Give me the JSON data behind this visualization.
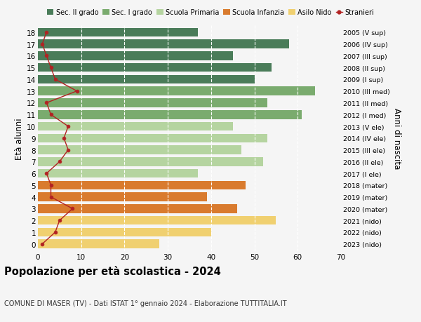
{
  "ages": [
    18,
    17,
    16,
    15,
    14,
    13,
    12,
    11,
    10,
    9,
    8,
    7,
    6,
    5,
    4,
    3,
    2,
    1,
    0
  ],
  "right_labels": [
    "2005 (V sup)",
    "2006 (IV sup)",
    "2007 (III sup)",
    "2008 (II sup)",
    "2009 (I sup)",
    "2010 (III med)",
    "2011 (II med)",
    "2012 (I med)",
    "2013 (V ele)",
    "2014 (IV ele)",
    "2015 (III ele)",
    "2016 (II ele)",
    "2017 (I ele)",
    "2018 (mater)",
    "2019 (mater)",
    "2020 (mater)",
    "2021 (nido)",
    "2022 (nido)",
    "2023 (nido)"
  ],
  "bar_values": [
    37,
    58,
    45,
    54,
    50,
    64,
    53,
    61,
    45,
    53,
    47,
    52,
    37,
    48,
    39,
    46,
    55,
    40,
    28
  ],
  "bar_colors": [
    "#4a7c59",
    "#4a7c59",
    "#4a7c59",
    "#4a7c59",
    "#4a7c59",
    "#7aab6e",
    "#7aab6e",
    "#7aab6e",
    "#b5d4a0",
    "#b5d4a0",
    "#b5d4a0",
    "#b5d4a0",
    "#b5d4a0",
    "#d97b2e",
    "#d97b2e",
    "#d97b2e",
    "#f0d070",
    "#f0d070",
    "#f0d070"
  ],
  "stranieri_values": [
    2,
    1,
    2,
    3,
    4,
    9,
    2,
    3,
    7,
    6,
    7,
    5,
    2,
    3,
    3,
    8,
    5,
    4,
    1
  ],
  "stranieri_color": "#b22222",
  "legend_labels": [
    "Sec. II grado",
    "Sec. I grado",
    "Scuola Primaria",
    "Scuola Infanzia",
    "Asilo Nido",
    "Stranieri"
  ],
  "legend_colors": [
    "#4a7c59",
    "#7aab6e",
    "#b5d4a0",
    "#d97b2e",
    "#f0d070",
    "#b22222"
  ],
  "ylabel_left": "Età alunni",
  "ylabel_right": "Anni di nascita",
  "xlim": [
    0,
    70
  ],
  "xticks": [
    0,
    10,
    20,
    30,
    40,
    50,
    60,
    70
  ],
  "title": "Popolazione per età scolastica - 2024",
  "subtitle": "COMUNE DI MASER (TV) - Dati ISTAT 1° gennaio 2024 - Elaborazione TUTTITALIA.IT",
  "bg_color": "#f5f5f5"
}
